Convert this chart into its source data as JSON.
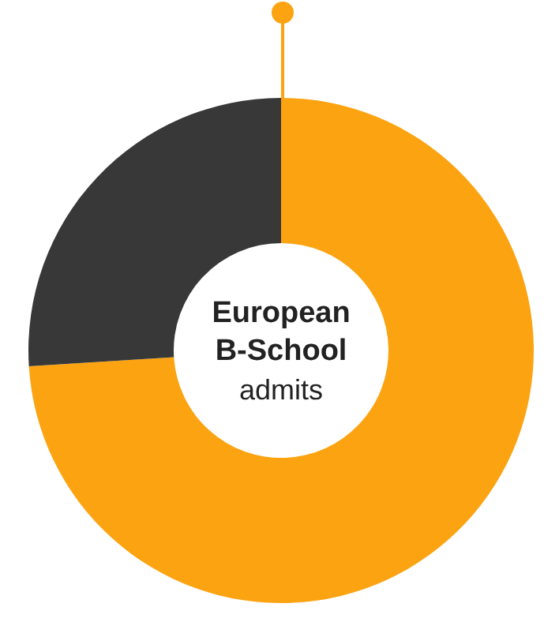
{
  "chart_data": {
    "type": "donut",
    "title": "European B-School",
    "subtitle": "admits",
    "categories": [
      null,
      null
    ],
    "values": [
      74,
      26
    ],
    "colors": [
      "#fca311",
      "#383838"
    ]
  }
}
